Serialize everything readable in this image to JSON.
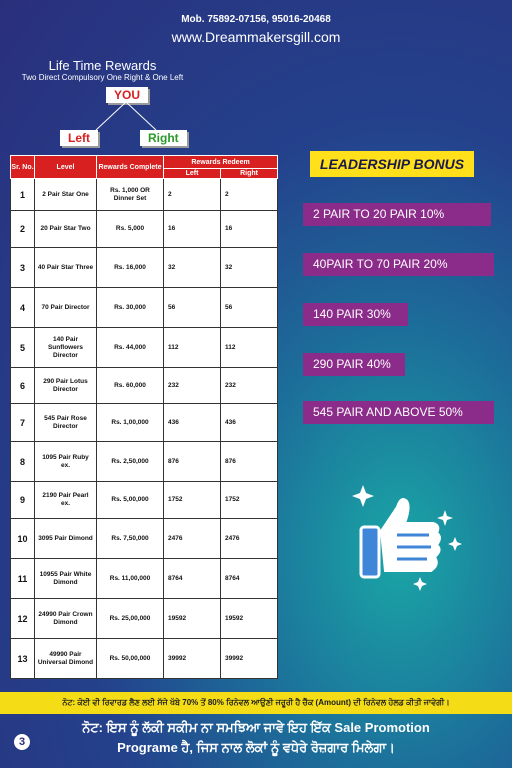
{
  "header": {
    "mobile": "Mob. 75892-07156, 95016-20468",
    "website": "www.Dreammakersgill.com"
  },
  "lifetime": {
    "title": "Life Time Rewards",
    "subtitle": "Two Direct Compulsory One Right & One Left",
    "you": "YOU",
    "left": "Left",
    "right": "Right"
  },
  "table": {
    "headers": {
      "sr": "Sr. No.",
      "level": "Level",
      "complete": "Rewards Complete",
      "redeem": "Rewards Redeem",
      "left": "Left",
      "right": "Right"
    },
    "rows": [
      {
        "sr": "1",
        "level": "2 Pair Star One",
        "complete": "Rs. 1,000 OR Dinner Set",
        "left": "2",
        "right": "2"
      },
      {
        "sr": "2",
        "level": "20 Pair Star Two",
        "complete": "Rs. 5,000",
        "left": "16",
        "right": "16"
      },
      {
        "sr": "3",
        "level": "40 Pair Star Three",
        "complete": "Rs. 16,000",
        "left": "32",
        "right": "32"
      },
      {
        "sr": "4",
        "level": "70 Pair Director",
        "complete": "Rs. 30,000",
        "left": "56",
        "right": "56"
      },
      {
        "sr": "5",
        "level": "140 Pair Sunflowers Director",
        "complete": "Rs. 44,000",
        "left": "112",
        "right": "112"
      },
      {
        "sr": "6",
        "level": "290 Pair Lotus Director",
        "complete": "Rs. 60,000",
        "left": "232",
        "right": "232"
      },
      {
        "sr": "7",
        "level": "545 Pair Rose Director",
        "complete": "Rs. 1,00,000",
        "left": "436",
        "right": "436"
      },
      {
        "sr": "8",
        "level": "1095 Pair Ruby ex.",
        "complete": "Rs. 2,50,000",
        "left": "876",
        "right": "876"
      },
      {
        "sr": "9",
        "level": "2190 Pair Pearl ex.",
        "complete": "Rs. 5,00,000",
        "left": "1752",
        "right": "1752"
      },
      {
        "sr": "10",
        "level": "3095 Pair Dimond",
        "complete": "Rs. 7,50,000",
        "left": "2476",
        "right": "2476"
      },
      {
        "sr": "11",
        "level": "10955 Pair White Dimond",
        "complete": "Rs. 11,00,000",
        "left": "8764",
        "right": "8764"
      },
      {
        "sr": "12",
        "level": "24990 Pair Crown Dimond",
        "complete": "Rs. 25,00,000",
        "left": "19592",
        "right": "19592"
      },
      {
        "sr": "13",
        "level": "49990 Pair Universal Dimond",
        "complete": "Rs. 50,00,000",
        "left": "39992",
        "right": "39992"
      }
    ]
  },
  "leadership": {
    "title": "LEADERSHIP BONUS",
    "items": [
      "2 PAIR TO 20 PAIR 10%",
      "40PAIR TO 70 PAIR 20%",
      "140 PAIR 30%",
      "290 PAIR 40%",
      "545 PAIR AND ABOVE 50%"
    ]
  },
  "note": "ਨੋਟ: ਕੋਈ ਵੀ ਰਿਵਾਰਡ ਲੈਣ ਲਈ ਸੱਜੇ ਖੱਬੇ 70% ਤੋਂ 80% ਰਿਨੇਵਲ ਆਉਣੀ ਜਰੂਰੀ ਹੈ ਚੈੱਕ (Amount) ਦੀ ਰਿਨੇਵਲ ਹੋਲਡ ਕੀਤੀ ਜਾਵੇਗੀ।",
  "footer": {
    "line1": "ਨੋਟ: ਇਸ ਨੂੰ ਲੱਕੀ ਸਕੀਮ ਨਾ ਸਮਝਿਆ ਜਾਵੇ ਇਹ ਇੱਕ Sale Promotion",
    "line2": "Programe ਹੈ, ਜਿਸ ਨਾਲ ਲੋਕਾਂ ਨੂੰ ਵਧੇਰੇ ਰੋਜ਼ਗਾਰ ਮਿਲੇਗਾ।",
    "page": "3"
  },
  "icons": [
    "thumbs-up-icon",
    "sparkle-icon"
  ]
}
